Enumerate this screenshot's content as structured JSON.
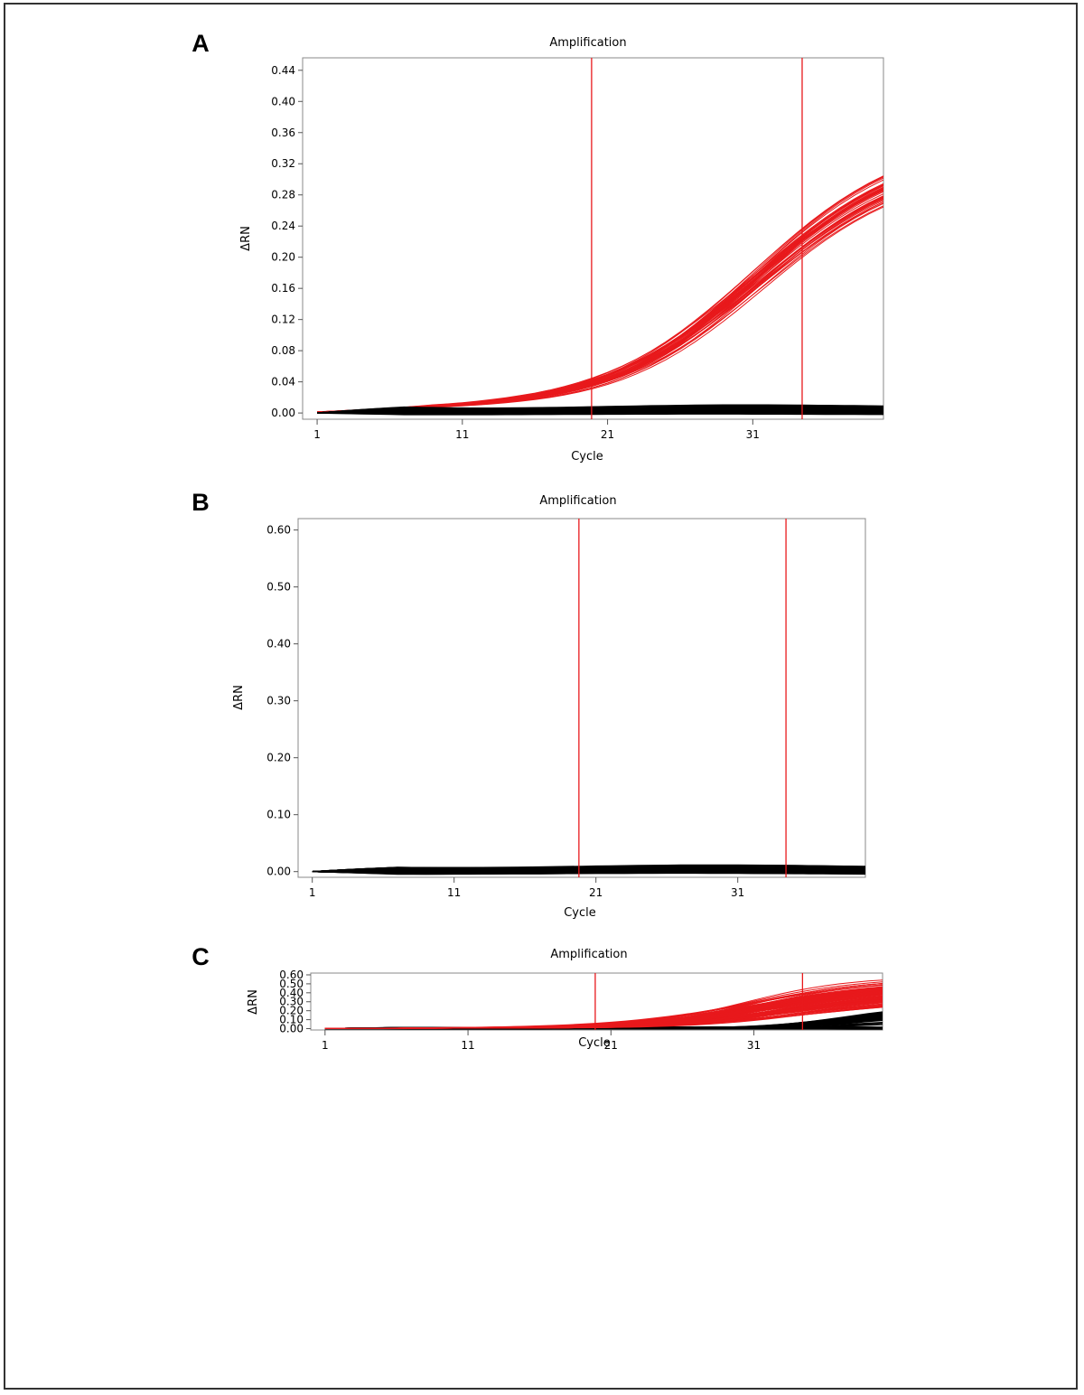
{
  "colors": {
    "positive": "#e8191c",
    "negative": "#000000",
    "threshold": "#e8191c",
    "frame": "#888888"
  },
  "chart_data": [
    {
      "type": "line",
      "panel_label": "A",
      "title": "Amplification",
      "xlabel": "Cycle",
      "ylabel": "ΔRN",
      "xlim": [
        0,
        40
      ],
      "ylim": [
        -0.008,
        0.456
      ],
      "xticks": [
        1,
        11,
        21,
        31
      ],
      "yticks": [
        0.0,
        0.04,
        0.08,
        0.12,
        0.16,
        0.2,
        0.24,
        0.28,
        0.32,
        0.36,
        0.4,
        0.44
      ],
      "ytick_labels": [
        "0.00",
        "0.04",
        "0.08",
        "0.12",
        "0.16",
        "0.20",
        "0.24",
        "0.28",
        "0.32",
        "0.36",
        "0.40",
        "0.44"
      ],
      "threshold_lines_x": [
        19.9,
        34.4
      ],
      "grid": false,
      "series_groups": [
        {
          "color": "red",
          "count": 40,
          "plateau_range": [
            0.3,
            0.37
          ],
          "midpoint_cycle_range": [
            30.8,
            32.0
          ],
          "slope_range": [
            0.18,
            0.2
          ]
        },
        {
          "color": "black",
          "count": 60,
          "baseline_range": [
            -0.003,
            0.012
          ],
          "midpoint_cycle_range": [
            30,
            30
          ],
          "slope_range": [
            0.2,
            0.2
          ],
          "plateau_range": [
            0,
            0
          ]
        }
      ]
    },
    {
      "type": "line",
      "panel_label": "B",
      "title": "Amplification",
      "xlabel": "Cycle",
      "ylabel": "ΔRN",
      "xlim": [
        0,
        40
      ],
      "ylim": [
        -0.01,
        0.62
      ],
      "xticks": [
        1,
        11,
        21,
        31
      ],
      "yticks": [
        0.0,
        0.1,
        0.2,
        0.3,
        0.4,
        0.5,
        0.6
      ],
      "ytick_labels": [
        "0.00",
        "0.10",
        "0.20",
        "0.30",
        "0.40",
        "0.50",
        "0.60"
      ],
      "threshold_lines_x": [
        19.8,
        34.4
      ],
      "grid": false,
      "series_groups": [
        {
          "color": "black",
          "count": 90,
          "baseline_range": [
            -0.006,
            0.012
          ],
          "midpoint_cycle_range": [
            30,
            30
          ],
          "slope_range": [
            0.2,
            0.2
          ],
          "plateau_range": [
            0,
            0
          ]
        }
      ]
    },
    {
      "type": "line",
      "panel_label": "C",
      "title": "Amplification",
      "xlabel": "Cycle",
      "ylabel": "ΔRN",
      "xlim": [
        0,
        40
      ],
      "ylim": [
        -0.015,
        0.62
      ],
      "xticks": [
        1,
        11,
        21,
        31
      ],
      "yticks": [
        0.0,
        0.1,
        0.2,
        0.3,
        0.4,
        0.5,
        0.6
      ],
      "ytick_labels": [
        "0.00",
        "0.10",
        "0.20",
        "0.30",
        "0.40",
        "0.50",
        "0.60"
      ],
      "threshold_lines_x": [
        19.9,
        34.4
      ],
      "grid": false,
      "series_groups": [
        {
          "color": "black",
          "count": 80,
          "baseline_range": [
            -0.006,
            0.02
          ],
          "midpoint_cycle_range": [
            30,
            30
          ],
          "slope_range": [
            0.2,
            0.2
          ],
          "plateau_range": [
            0,
            0
          ]
        },
        {
          "color": "black",
          "count": 25,
          "plateau_range": [
            0.03,
            0.3
          ],
          "midpoint_cycle_range": [
            37.0,
            39.0
          ],
          "slope_range": [
            0.32,
            0.42
          ]
        },
        {
          "color": "red",
          "count": 100,
          "plateau_range": [
            0.25,
            0.6
          ],
          "midpoint_cycle_range": [
            30.0,
            35.8
          ],
          "slope_range": [
            0.2,
            0.27
          ]
        }
      ]
    }
  ]
}
